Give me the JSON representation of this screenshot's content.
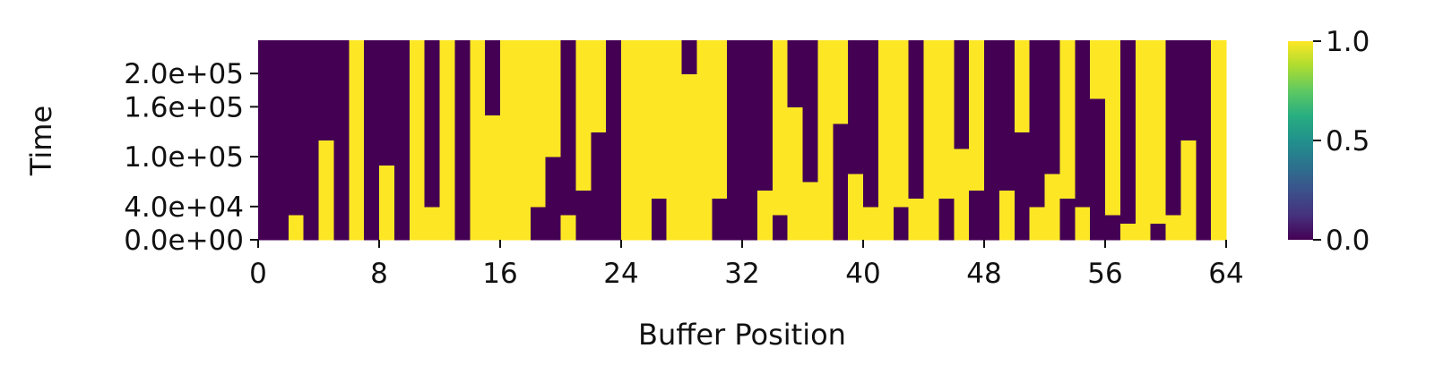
{
  "chart_data": {
    "type": "heatmap",
    "title": "",
    "xlabel": "Buffer Position",
    "ylabel": "Time",
    "xlim": [
      0,
      64
    ],
    "ylim": [
      0,
      240000
    ],
    "xticks": [
      0,
      8,
      16,
      24,
      32,
      40,
      48,
      56,
      64
    ],
    "xtick_labels": [
      "0",
      "8",
      "16",
      "24",
      "32",
      "40",
      "48",
      "56",
      "64"
    ],
    "yticks": [
      0,
      40000,
      100000,
      160000,
      200000
    ],
    "ytick_labels": [
      "0.0e+00",
      "4.0e+04",
      "1.0e+05",
      "1.6e+05",
      "2.0e+05"
    ],
    "colorbar": {
      "range": [
        0,
        1
      ],
      "ticks": [
        0,
        0.5,
        1
      ],
      "tick_labels": [
        "0.0",
        "0.5",
        "1.0"
      ],
      "colormap": "viridis",
      "low_color": "#440154",
      "mid_color": "#21918c",
      "high_color": "#fde725"
    },
    "columns": [
      [
        [
          0,
          240000,
          0
        ]
      ],
      [
        [
          0,
          240000,
          0
        ]
      ],
      [
        [
          0,
          30000,
          1
        ],
        [
          30000,
          240000,
          0
        ]
      ],
      [
        [
          0,
          240000,
          0
        ]
      ],
      [
        [
          0,
          120000,
          1
        ],
        [
          120000,
          240000,
          0
        ]
      ],
      [
        [
          0,
          240000,
          0
        ]
      ],
      [
        [
          0,
          240000,
          1
        ]
      ],
      [
        [
          0,
          240000,
          0
        ]
      ],
      [
        [
          0,
          90000,
          1
        ],
        [
          90000,
          240000,
          0
        ]
      ],
      [
        [
          0,
          240000,
          0
        ]
      ],
      [
        [
          0,
          240000,
          1
        ]
      ],
      [
        [
          0,
          40000,
          1
        ],
        [
          40000,
          240000,
          0
        ]
      ],
      [
        [
          0,
          240000,
          1
        ]
      ],
      [
        [
          0,
          240000,
          0
        ]
      ],
      [
        [
          0,
          240000,
          1
        ]
      ],
      [
        [
          0,
          150000,
          1
        ],
        [
          150000,
          240000,
          0
        ]
      ],
      [
        [
          0,
          240000,
          1
        ]
      ],
      [
        [
          0,
          240000,
          1
        ]
      ],
      [
        [
          0,
          40000,
          0
        ],
        [
          40000,
          240000,
          1
        ]
      ],
      [
        [
          0,
          100000,
          0
        ],
        [
          100000,
          240000,
          1
        ]
      ],
      [
        [
          0,
          30000,
          1
        ],
        [
          30000,
          240000,
          0
        ]
      ],
      [
        [
          0,
          60000,
          0
        ],
        [
          60000,
          240000,
          1
        ]
      ],
      [
        [
          0,
          130000,
          0
        ],
        [
          130000,
          240000,
          1
        ]
      ],
      [
        [
          0,
          240000,
          0
        ]
      ],
      [
        [
          0,
          240000,
          1
        ]
      ],
      [
        [
          0,
          240000,
          1
        ]
      ],
      [
        [
          0,
          50000,
          0
        ],
        [
          50000,
          240000,
          1
        ]
      ],
      [
        [
          0,
          240000,
          1
        ]
      ],
      [
        [
          0,
          200000,
          1
        ],
        [
          200000,
          240000,
          0
        ]
      ],
      [
        [
          0,
          240000,
          1
        ]
      ],
      [
        [
          0,
          50000,
          0
        ],
        [
          50000,
          240000,
          1
        ]
      ],
      [
        [
          0,
          240000,
          0
        ]
      ],
      [
        [
          0,
          240000,
          0
        ]
      ],
      [
        [
          0,
          60000,
          1
        ],
        [
          60000,
          240000,
          0
        ]
      ],
      [
        [
          0,
          30000,
          0
        ],
        [
          30000,
          240000,
          1
        ]
      ],
      [
        [
          0,
          160000,
          1
        ],
        [
          160000,
          240000,
          0
        ]
      ],
      [
        [
          0,
          70000,
          1
        ],
        [
          70000,
          240000,
          0
        ]
      ],
      [
        [
          0,
          240000,
          1
        ]
      ],
      [
        [
          0,
          140000,
          0
        ],
        [
          140000,
          240000,
          1
        ]
      ],
      [
        [
          0,
          80000,
          1
        ],
        [
          80000,
          240000,
          0
        ]
      ],
      [
        [
          0,
          40000,
          1
        ],
        [
          40000,
          240000,
          0
        ]
      ],
      [
        [
          0,
          240000,
          1
        ]
      ],
      [
        [
          0,
          40000,
          0
        ],
        [
          40000,
          240000,
          1
        ]
      ],
      [
        [
          0,
          50000,
          1
        ],
        [
          50000,
          240000,
          0
        ]
      ],
      [
        [
          0,
          240000,
          1
        ]
      ],
      [
        [
          0,
          50000,
          0
        ],
        [
          50000,
          240000,
          1
        ]
      ],
      [
        [
          0,
          110000,
          1
        ],
        [
          110000,
          240000,
          0
        ]
      ],
      [
        [
          0,
          60000,
          0
        ],
        [
          60000,
          240000,
          1
        ]
      ],
      [
        [
          0,
          240000,
          0
        ]
      ],
      [
        [
          0,
          60000,
          1
        ],
        [
          60000,
          240000,
          0
        ]
      ],
      [
        [
          0,
          130000,
          0
        ],
        [
          130000,
          240000,
          1
        ]
      ],
      [
        [
          0,
          40000,
          1
        ],
        [
          40000,
          240000,
          0
        ]
      ],
      [
        [
          0,
          80000,
          1
        ],
        [
          80000,
          240000,
          0
        ]
      ],
      [
        [
          0,
          50000,
          0
        ],
        [
          50000,
          240000,
          1
        ]
      ],
      [
        [
          0,
          40000,
          1
        ],
        [
          40000,
          240000,
          0
        ]
      ],
      [
        [
          0,
          170000,
          0
        ],
        [
          170000,
          240000,
          1
        ]
      ],
      [
        [
          0,
          30000,
          0
        ],
        [
          30000,
          240000,
          1
        ]
      ],
      [
        [
          0,
          20000,
          1
        ],
        [
          20000,
          240000,
          0
        ]
      ],
      [
        [
          0,
          240000,
          1
        ]
      ],
      [
        [
          0,
          20000,
          0
        ],
        [
          20000,
          240000,
          1
        ]
      ],
      [
        [
          0,
          30000,
          1
        ],
        [
          30000,
          240000,
          0
        ]
      ],
      [
        [
          0,
          120000,
          1
        ],
        [
          120000,
          240000,
          0
        ]
      ],
      [
        [
          0,
          240000,
          0
        ]
      ],
      [
        [
          0,
          240000,
          1
        ]
      ]
    ]
  }
}
